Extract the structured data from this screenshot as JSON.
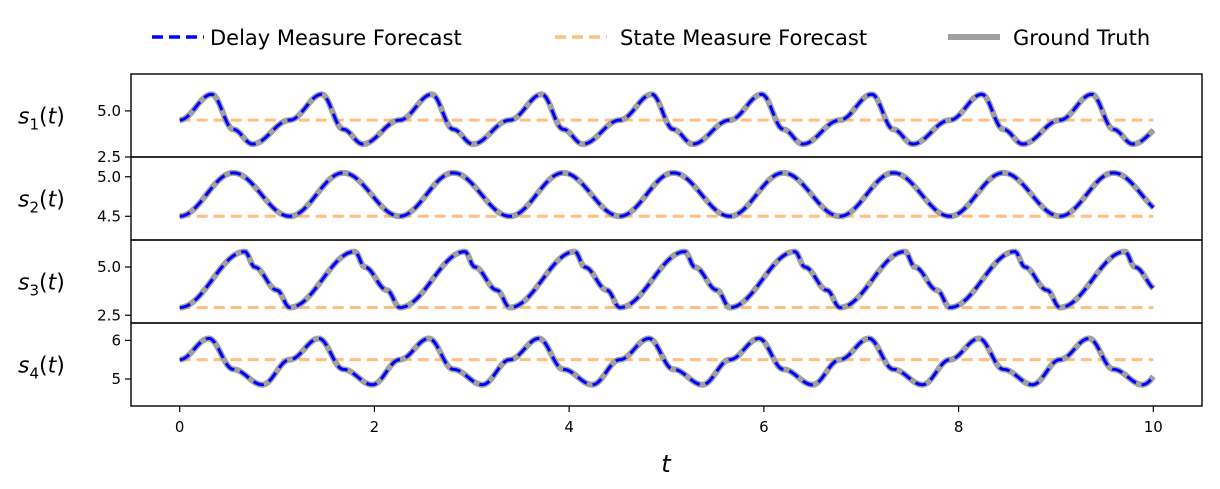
{
  "chart_data": {
    "type": "line",
    "xlabel": "t",
    "xlim": [
      -0.5,
      10.5
    ],
    "xticks": [
      0,
      2,
      4,
      6,
      8,
      10
    ],
    "legend": {
      "placement": "top-center",
      "entries": [
        {
          "label": "Delay Measure Forecast",
          "color": "#0000ff",
          "style": "dashed"
        },
        {
          "label": "State Measure Forecast",
          "color": "#ffbf80",
          "style": "dashed"
        },
        {
          "label": "Ground Truth",
          "color": "#a0a0a0",
          "style": "solid"
        }
      ]
    },
    "panels": [
      {
        "ylabel_main": "s",
        "ylabel_sub": "1",
        "ylabel_arg": "(t)",
        "ylim": [
          2.5,
          7.0
        ],
        "yticks": [
          2.5,
          5.0
        ],
        "period": 1.13,
        "keypoints": [
          [
            0,
            4.5
          ],
          [
            0.33,
            5.9
          ],
          [
            0.55,
            4.0
          ],
          [
            0.75,
            3.2
          ],
          [
            1.13,
            4.5
          ]
        ],
        "state_forecast": 4.5
      },
      {
        "ylabel_main": "s",
        "ylabel_sub": "2",
        "ylabel_arg": "(t)",
        "ylim": [
          4.2,
          5.25
        ],
        "yticks": [
          4.5,
          5.0
        ],
        "period": 1.13,
        "keypoints": [
          [
            0,
            4.5
          ],
          [
            0.55,
            5.05
          ],
          [
            1.13,
            4.5
          ]
        ],
        "state_forecast": 4.5
      },
      {
        "ylabel_main": "s",
        "ylabel_sub": "3",
        "ylabel_arg": "(t)",
        "ylim": [
          2.1,
          6.4
        ],
        "yticks": [
          2.5,
          5.0
        ],
        "period": 1.13,
        "keypoints": [
          [
            0,
            2.9
          ],
          [
            0.67,
            5.8
          ],
          [
            0.77,
            5.0
          ],
          [
            1.0,
            3.8
          ],
          [
            1.13,
            2.9
          ]
        ],
        "state_forecast": 2.9
      },
      {
        "ylabel_main": "s",
        "ylabel_sub": "4",
        "ylabel_arg": "(t)",
        "ylim": [
          4.3,
          6.45
        ],
        "yticks": [
          5,
          6
        ],
        "yticklabels": [
          "5",
          "6"
        ],
        "period": 1.13,
        "keypoints": [
          [
            0,
            5.5
          ],
          [
            0.3,
            6.05
          ],
          [
            0.55,
            5.25
          ],
          [
            0.85,
            4.85
          ],
          [
            1.13,
            5.5
          ]
        ],
        "state_forecast": 5.5
      }
    ]
  }
}
